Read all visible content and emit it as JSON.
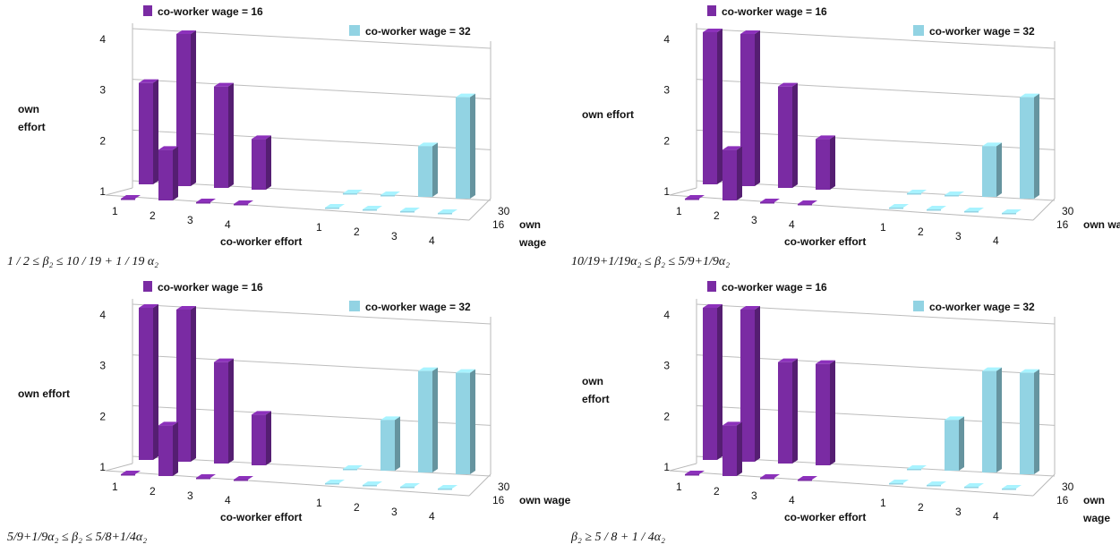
{
  "colors": {
    "purple": "#7a2ba3",
    "cyan": "#92d3e3"
  },
  "chart_data": [
    {
      "type": "bar",
      "subtype": "3d-bar",
      "condition": "1 / 2 ≤ β₂ ≤ 10 / 19 + 1 / 19 α₂",
      "yticks": [
        "1",
        "2",
        "3",
        "4"
      ],
      "ylim": [
        1,
        4
      ],
      "ylabel": [
        "own",
        "effort"
      ],
      "xlabel": "co-worker effort",
      "depth_label": [
        "own",
        "wage"
      ],
      "depth_ticks": [
        "30",
        "16"
      ],
      "legend": [
        "co-worker wage = 16",
        "co-worker wage = 32"
      ],
      "groups": [
        {
          "name": "co-worker wage = 16",
          "categories": [
            "1",
            "2",
            "3",
            "4"
          ],
          "own_wage_30": [
            3,
            4,
            3,
            2
          ],
          "own_wage_16": [
            1,
            2,
            1,
            1
          ]
        },
        {
          "name": "co-worker wage = 32",
          "categories": [
            "1",
            "2",
            "3",
            "4"
          ],
          "own_wage_30": [
            1,
            1,
            2,
            3
          ],
          "own_wage_16": [
            1,
            1,
            1,
            1
          ]
        }
      ]
    },
    {
      "type": "bar",
      "subtype": "3d-bar",
      "condition": "10/19+1/19α₂ ≤ β₂ ≤ 5/9+1/9α₂",
      "yticks": [
        "1",
        "2",
        "3",
        "4"
      ],
      "ylim": [
        1,
        4
      ],
      "ylabel": [
        "own effort"
      ],
      "xlabel": "co-worker effort",
      "depth_label": [
        "own wage"
      ],
      "depth_ticks": [
        "30",
        "16"
      ],
      "legend": [
        "co-worker wage = 16",
        "co-worker wage = 32"
      ],
      "groups": [
        {
          "name": "co-worker wage = 16",
          "categories": [
            "1",
            "2",
            "3",
            "4"
          ],
          "own_wage_30": [
            4,
            4,
            3,
            2
          ],
          "own_wage_16": [
            1,
            2,
            1,
            1
          ]
        },
        {
          "name": "co-worker wage = 32",
          "categories": [
            "1",
            "2",
            "3",
            "4"
          ],
          "own_wage_30": [
            1,
            1,
            2,
            3
          ],
          "own_wage_16": [
            1,
            1,
            1,
            1
          ]
        }
      ]
    },
    {
      "type": "bar",
      "subtype": "3d-bar",
      "condition": "5/9+1/9α₂ ≤ β₂ ≤ 5/8+1/4α₂",
      "yticks": [
        "1",
        "2",
        "3",
        "4"
      ],
      "ylim": [
        1,
        4
      ],
      "ylabel": [
        "own effort"
      ],
      "xlabel": "co-worker effort",
      "depth_label": [
        "own wage"
      ],
      "depth_ticks": [
        "30",
        "16"
      ],
      "legend": [
        "co-worker wage = 16",
        "co-worker wage = 32"
      ],
      "groups": [
        {
          "name": "co-worker wage = 16",
          "categories": [
            "1",
            "2",
            "3",
            "4"
          ],
          "own_wage_30": [
            4,
            4,
            3,
            2
          ],
          "own_wage_16": [
            1,
            2,
            1,
            1
          ]
        },
        {
          "name": "co-worker wage = 32",
          "categories": [
            "1",
            "2",
            "3",
            "4"
          ],
          "own_wage_30": [
            1,
            2,
            3,
            3
          ],
          "own_wage_16": [
            1,
            1,
            1,
            1
          ]
        }
      ]
    },
    {
      "type": "bar",
      "subtype": "3d-bar",
      "condition": "β₂ ≥ 5 / 8 + 1 / 4α₂",
      "yticks": [
        "1",
        "2",
        "3",
        "4"
      ],
      "ylim": [
        1,
        4
      ],
      "ylabel": [
        "own",
        "effort"
      ],
      "xlabel": "co-worker effort",
      "depth_label": [
        "own",
        "wage"
      ],
      "depth_ticks": [
        "30",
        "16"
      ],
      "legend": [
        "co-worker wage = 16",
        "co-worker wage = 32"
      ],
      "groups": [
        {
          "name": "co-worker wage = 16",
          "categories": [
            "1",
            "2",
            "3",
            "4"
          ],
          "own_wage_30": [
            4,
            4,
            3,
            3
          ],
          "own_wage_16": [
            1,
            2,
            1,
            1
          ]
        },
        {
          "name": "co-worker wage = 32",
          "categories": [
            "1",
            "2",
            "3",
            "4"
          ],
          "own_wage_30": [
            1,
            2,
            3,
            3
          ],
          "own_wage_16": [
            1,
            1,
            1,
            1
          ]
        }
      ]
    }
  ]
}
